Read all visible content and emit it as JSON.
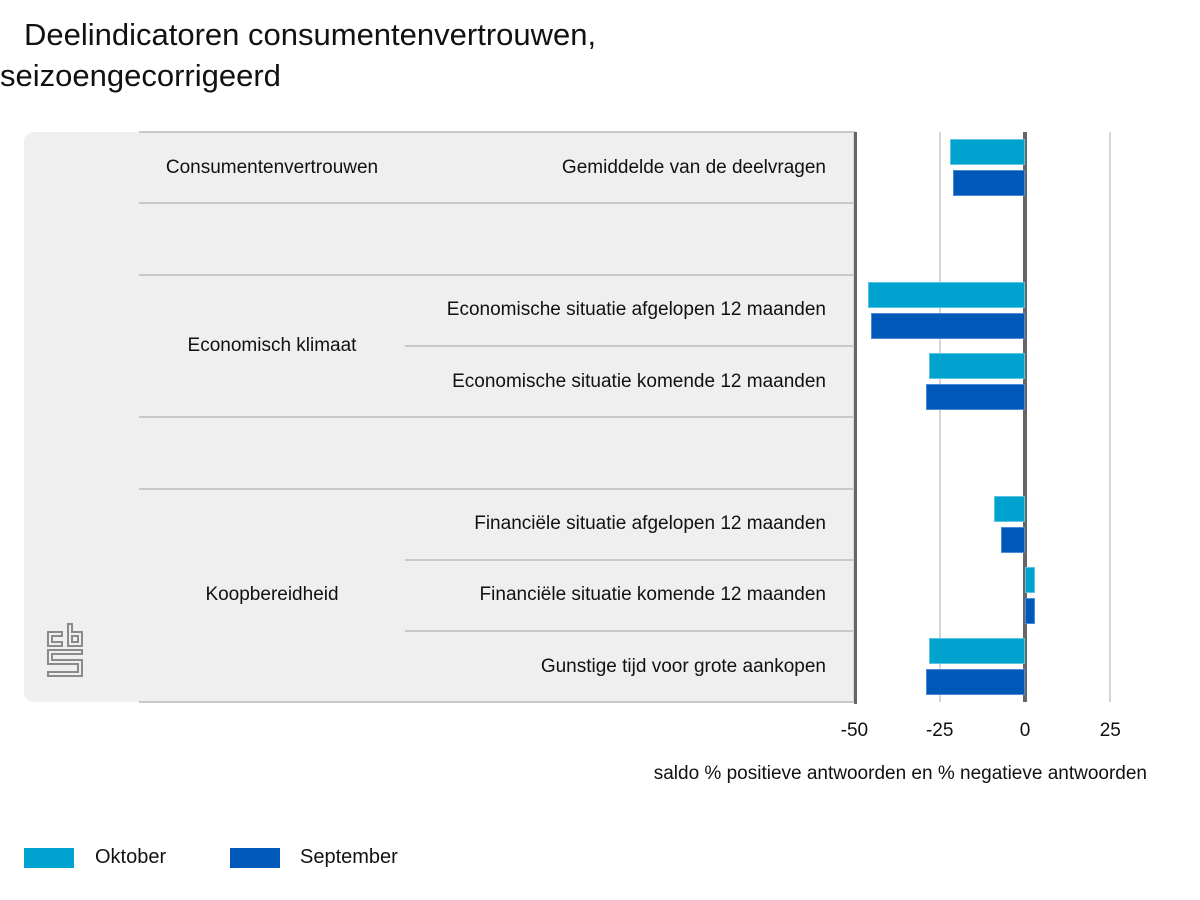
{
  "title": [
    "Deelindicatoren consumentenvertrouwen,",
    "seizoengecorrigeerd"
  ],
  "chart_data": {
    "type": "bar",
    "orientation": "horizontal",
    "categories": [
      "Gemiddelde van de deelvragen",
      "Economische situatie afgelopen 12 maanden",
      "Economische situatie komende 12 maanden",
      "Financiële situatie afgelopen 12 maanden",
      "Financiële situatie komende 12 maanden",
      "Gunstige tijd voor grote aankopen"
    ],
    "groups": [
      {
        "name": "Consumentenvertrouwen",
        "categories": [
          0
        ]
      },
      {
        "name": "Economisch klimaat",
        "categories": [
          1,
          2
        ]
      },
      {
        "name": "Koopbereidheid",
        "categories": [
          3,
          4,
          5
        ]
      }
    ],
    "series": [
      {
        "name": "Oktober",
        "color": "#00a3cf",
        "values": [
          -22,
          -46,
          -28,
          -9,
          3,
          -28
        ]
      },
      {
        "name": "September",
        "color": "#0058b8",
        "values": [
          -21,
          -45,
          -29,
          -7,
          3,
          -29
        ]
      }
    ],
    "xlim": [
      -50,
      25
    ],
    "ticks": [
      "-50",
      "-25",
      "0",
      "25"
    ],
    "xlabel": "saldo % positieve antwoorden en % negatieve antwoorden",
    "legend": "bottom-left",
    "grid": true
  }
}
